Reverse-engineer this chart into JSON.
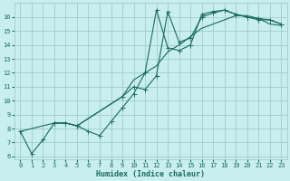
{
  "xlabel": "Humidex (Indice chaleur)",
  "background_color": "#c8eef0",
  "grid_color": "#a0ccc8",
  "line_color": "#1a6b60",
  "xlim": [
    -0.5,
    23.5
  ],
  "ylim": [
    5.8,
    17.0
  ],
  "xtick_labels": [
    "0",
    "1",
    "2",
    "3",
    "4",
    "5",
    "6",
    "7",
    "8",
    "9",
    "10",
    "11",
    "12",
    "13",
    "14",
    "15",
    "16",
    "17",
    "18",
    "19",
    "20",
    "21",
    "22",
    "23"
  ],
  "xtick_vals": [
    0,
    1,
    2,
    3,
    4,
    5,
    6,
    7,
    8,
    9,
    10,
    11,
    12,
    13,
    14,
    15,
    16,
    17,
    18,
    19,
    20,
    21,
    22,
    23
  ],
  "ytick_vals": [
    6,
    7,
    8,
    9,
    10,
    11,
    12,
    13,
    14,
    15,
    16
  ],
  "line1": {
    "x": [
      0,
      1,
      2,
      3,
      4,
      5,
      6,
      7,
      8,
      9,
      10,
      11,
      12,
      13,
      14,
      15,
      16,
      17,
      18,
      19,
      20,
      21,
      22,
      23
    ],
    "y": [
      7.8,
      6.2,
      7.2,
      8.4,
      8.4,
      8.2,
      7.8,
      7.5,
      8.5,
      9.5,
      10.5,
      12.0,
      16.5,
      13.8,
      13.6,
      14.0,
      16.2,
      16.4,
      16.5,
      16.2,
      16.0,
      15.8,
      15.8,
      15.5
    ],
    "markers": true
  },
  "line2": {
    "x": [
      3,
      4,
      5,
      9,
      10,
      11,
      12,
      13,
      14,
      15,
      16,
      17,
      18,
      19,
      20,
      21,
      22,
      23
    ],
    "y": [
      8.4,
      8.4,
      8.2,
      10.3,
      11.0,
      10.8,
      11.8,
      16.4,
      14.2,
      14.5,
      16.0,
      16.3,
      16.5,
      16.2,
      16.0,
      15.9,
      15.8,
      15.5
    ],
    "markers": true
  },
  "line3": {
    "x": [
      0,
      3,
      4,
      5,
      9,
      10,
      11,
      12,
      13,
      14,
      15,
      16,
      17,
      18,
      19,
      20,
      21,
      22,
      23
    ],
    "y": [
      7.8,
      8.4,
      8.4,
      8.2,
      10.3,
      11.5,
      12.0,
      12.5,
      13.5,
      14.0,
      14.6,
      15.2,
      15.5,
      15.8,
      16.1,
      16.1,
      15.9,
      15.5,
      15.4
    ],
    "markers": false
  },
  "font_size_tick": 5.0,
  "font_size_xlabel": 6.0,
  "line_width": 0.8,
  "marker_size": 1.8
}
